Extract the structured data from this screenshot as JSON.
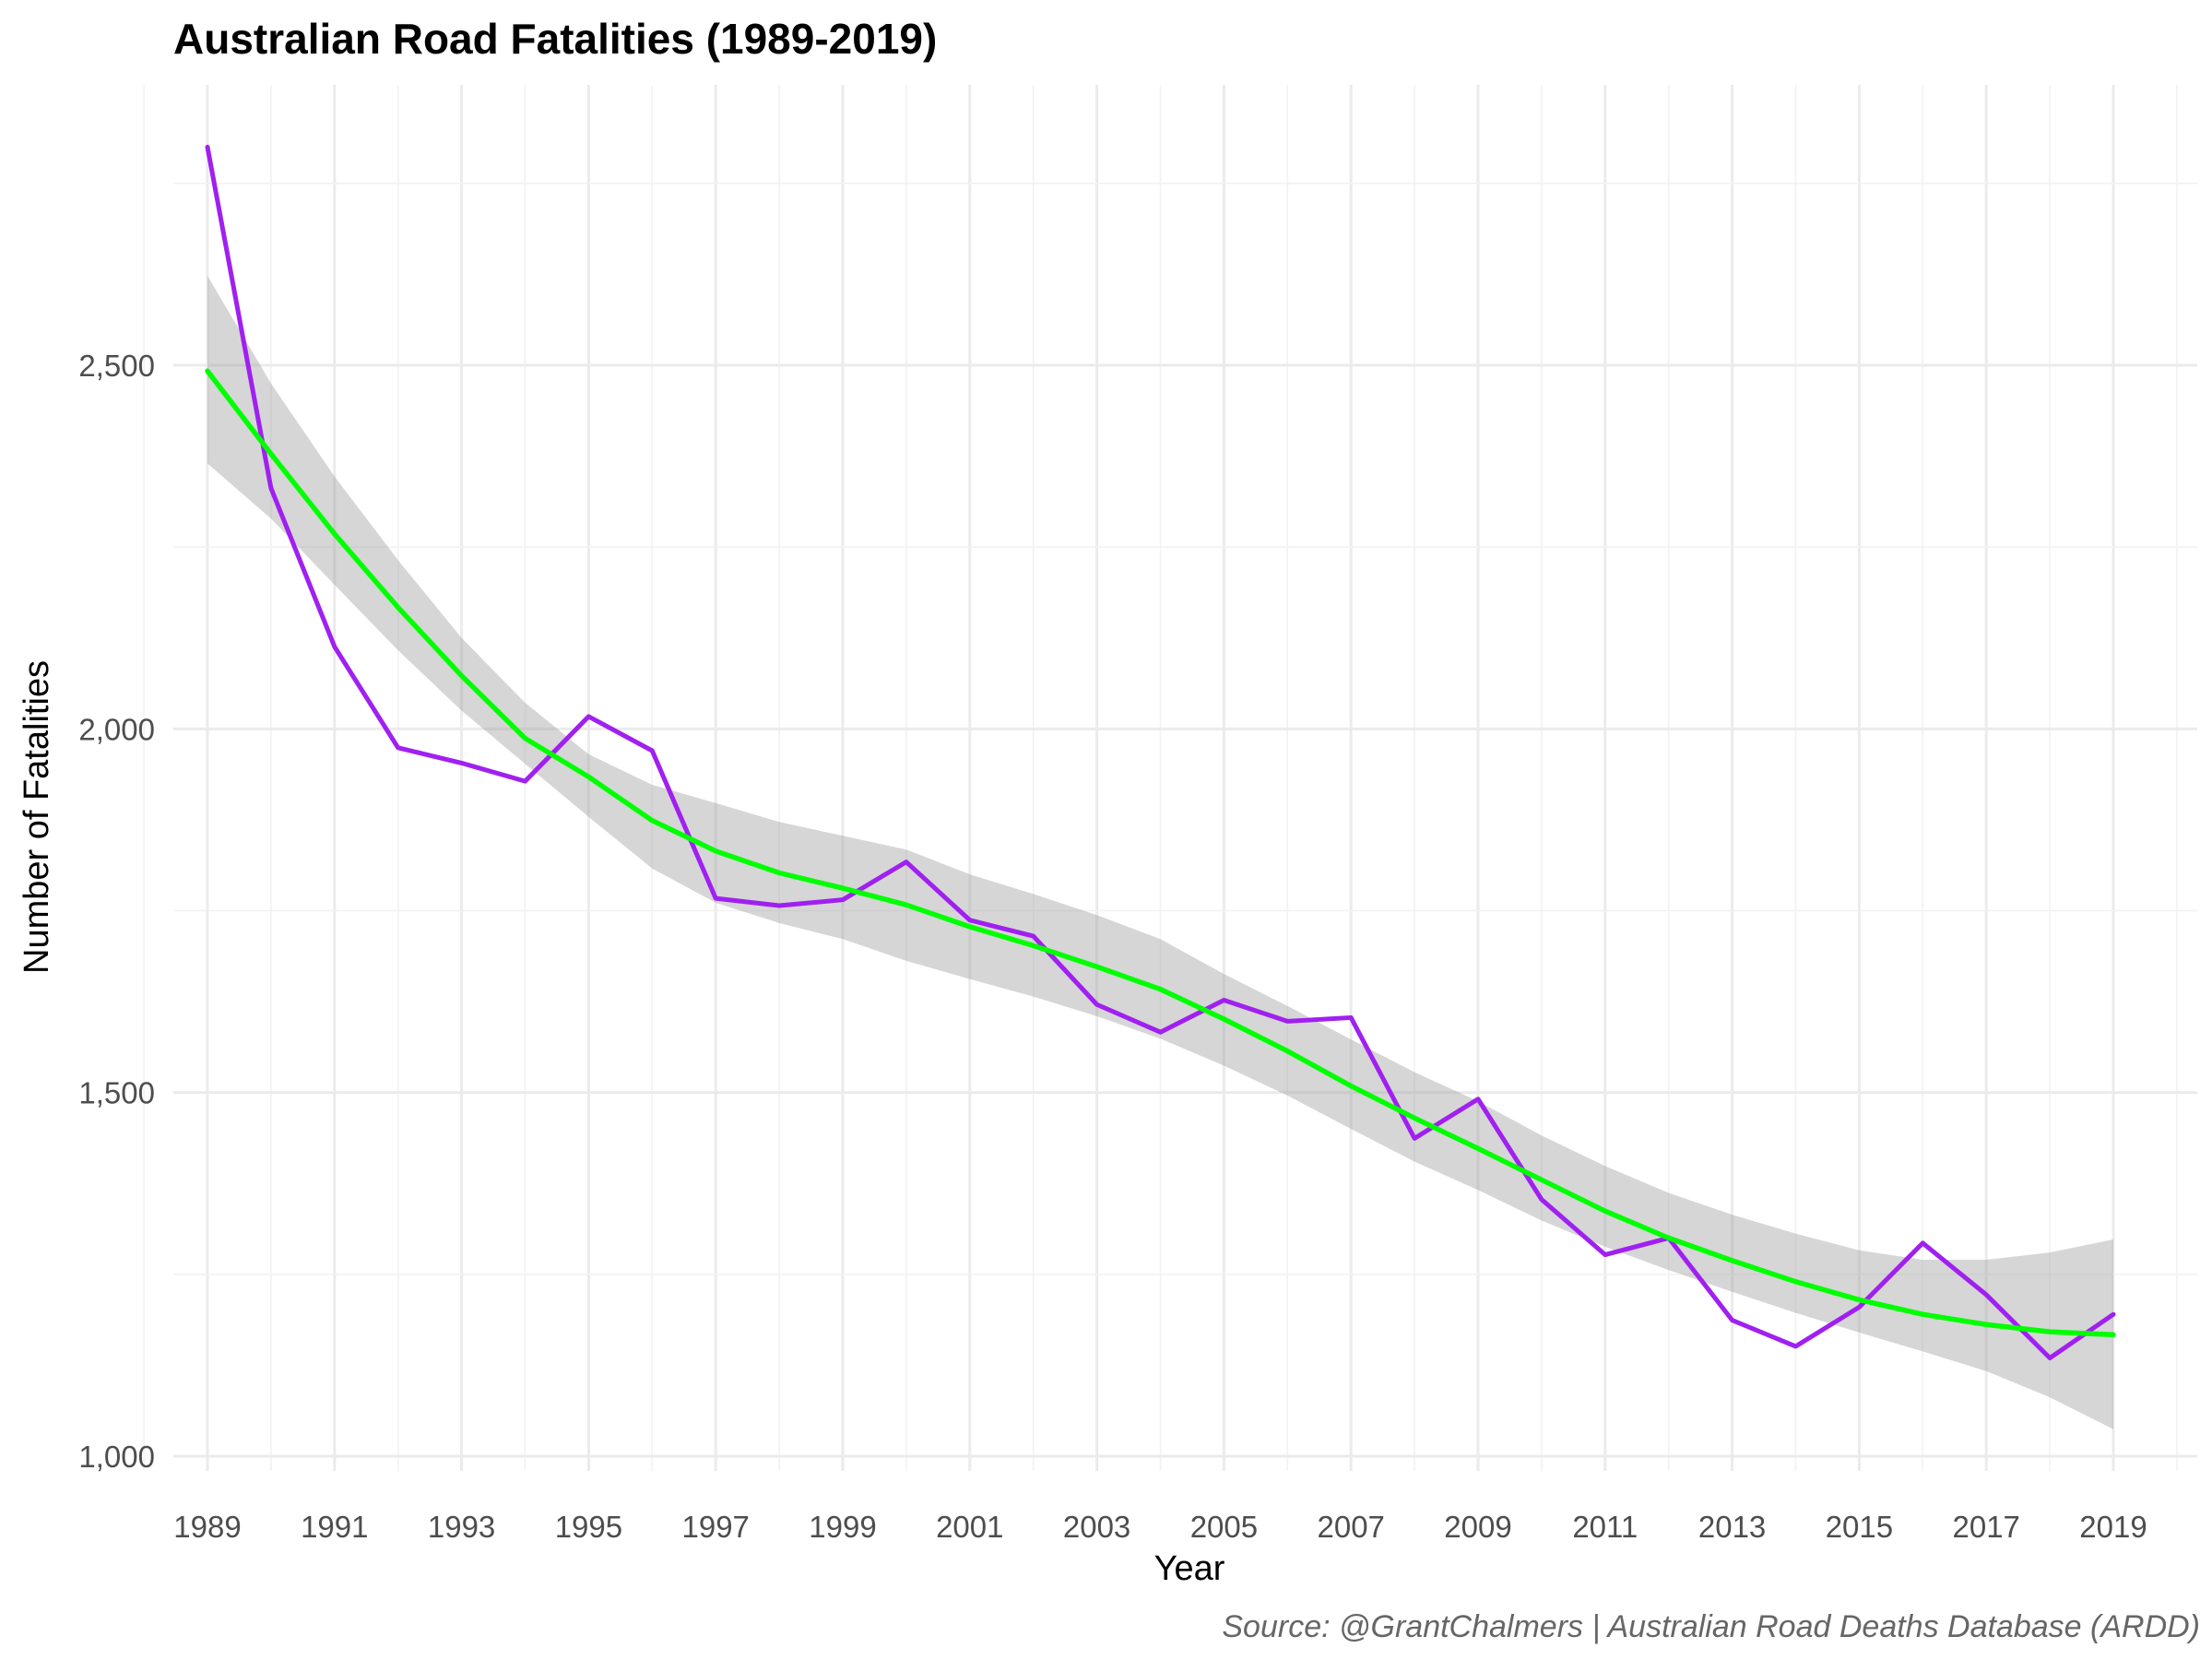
{
  "chart_data": {
    "type": "line",
    "title": "Australian Road Fatalities (1989-2019)",
    "xlabel": "Year",
    "ylabel": "Number of Fatalities",
    "caption": "Source: @GrantChalmers | Australian Road Deaths Database (ARDD)",
    "xlim": [
      1988,
      2020
    ],
    "ylim": [
      1000,
      2800
    ],
    "x_ticks": [
      1989,
      1991,
      1993,
      1995,
      1997,
      1999,
      2001,
      2003,
      2005,
      2007,
      2009,
      2011,
      2013,
      2015,
      2017,
      2019
    ],
    "x_tick_labels": [
      "1989",
      "1991",
      "1993",
      "1995",
      "1997",
      "1999",
      "2001",
      "2003",
      "2005",
      "2007",
      "2009",
      "2011",
      "2013",
      "2015",
      "2017",
      "2019"
    ],
    "y_ticks": [
      1000,
      1500,
      2000,
      2500
    ],
    "y_tick_labels": [
      "1,000",
      "1,500",
      "2,000",
      "2,500"
    ],
    "grid": true,
    "legend": "none",
    "x": [
      1989,
      1990,
      1991,
      1992,
      1993,
      1994,
      1995,
      1996,
      1997,
      1998,
      1999,
      2000,
      2001,
      2002,
      2003,
      2004,
      2005,
      2006,
      2007,
      2008,
      2009,
      2010,
      2011,
      2012,
      2013,
      2014,
      2015,
      2016,
      2017,
      2018,
      2019
    ],
    "series": [
      {
        "values": [
          2800,
          2331,
          2113,
          1974,
          1953,
          1928,
          2017,
          1970,
          1767,
          1757,
          1765,
          1817,
          1737,
          1715,
          1621,
          1583,
          1627,
          1598,
          1603,
          1437,
          1491,
          1353,
          1277,
          1300,
          1187,
          1151,
          1205,
          1293,
          1222,
          1135,
          1195
        ],
        "color": "#a020f0"
      }
    ],
    "trend": {
      "type": "loess",
      "color": "#00ff00",
      "values": [
        2492,
        2378,
        2268,
        2167,
        2073,
        1987,
        1934,
        1874,
        1832,
        1802,
        1781,
        1758,
        1728,
        1702,
        1673,
        1642,
        1601,
        1557,
        1509,
        1465,
        1423,
        1380,
        1337,
        1300,
        1269,
        1240,
        1215,
        1195,
        1181,
        1171,
        1167
      ],
      "band_lower": [
        2365,
        2289,
        2198,
        2108,
        2025,
        1952,
        1879,
        1808,
        1761,
        1733,
        1711,
        1681,
        1656,
        1632,
        1605,
        1574,
        1537,
        1496,
        1450,
        1405,
        1366,
        1324,
        1288,
        1256,
        1226,
        1197,
        1170,
        1144,
        1117,
        1081,
        1037
      ],
      "band_upper": [
        2623,
        2475,
        2347,
        2232,
        2125,
        2036,
        1965,
        1923,
        1898,
        1872,
        1853,
        1834,
        1800,
        1773,
        1744,
        1711,
        1663,
        1619,
        1573,
        1528,
        1488,
        1441,
        1399,
        1362,
        1332,
        1306,
        1283,
        1270,
        1270,
        1280,
        1298
      ],
      "band_color": "#999999"
    }
  }
}
